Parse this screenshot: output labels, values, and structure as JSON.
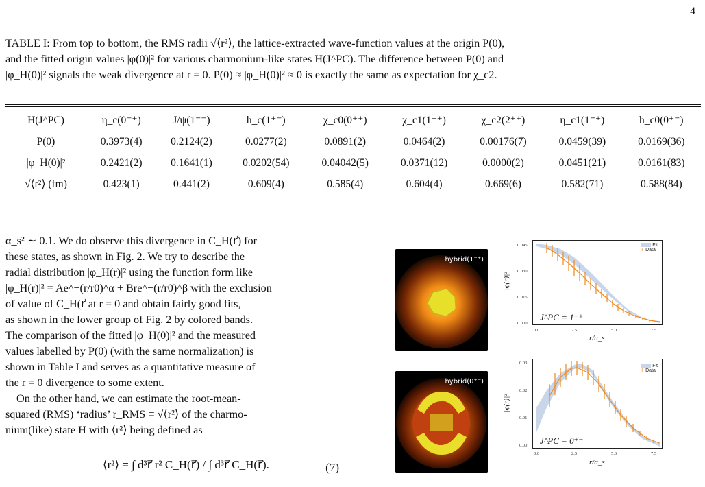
{
  "page_number": "4",
  "caption": {
    "line1": "TABLE I: From top to bottom, the RMS radii √⟨r²⟩, the lattice-extracted wave-function values at the origin P(0),",
    "line2": "and the fitted origin values |φ(0)|² for various charmonium-like states H(J^PC). The difference between P(0) and",
    "line3": "|φ_H(0)|² signals the weak divergence at r = 0. P(0) ≈ |φ_H(0)|² ≈ 0 is exactly the same as expectation for χ_c2."
  },
  "table": {
    "header": [
      "H(J^PC)",
      "η_c(0⁻⁺)",
      "J/ψ(1⁻⁻)",
      "h_c(1⁺⁻)",
      "χ_c0(0⁺⁺)",
      "χ_c1(1⁺⁺)",
      "χ_c2(2⁺⁺)",
      "η_c1(1⁻⁺)",
      "h_c0(0⁺⁻)"
    ],
    "rows": [
      [
        "P(0)",
        "0.3973(4)",
        "0.2124(2)",
        "0.0277(2)",
        "0.0891(2)",
        "0.0464(2)",
        "0.00176(7)",
        "0.0459(39)",
        "0.0169(36)"
      ],
      [
        "|φ_H(0)|²",
        "0.2421(2)",
        "0.1641(1)",
        "0.0202(54)",
        "0.04042(5)",
        "0.0371(12)",
        "0.0000(2)",
        "0.0451(21)",
        "0.0161(83)"
      ],
      [
        "√⟨r²⟩ (fm)",
        "0.423(1)",
        "0.441(2)",
        "0.609(4)",
        "0.585(4)",
        "0.604(4)",
        "0.669(6)",
        "0.582(71)",
        "0.588(84)"
      ]
    ]
  },
  "body": {
    "l1": "α_s² ∼ 0.1. We do observe this divergence in C_H(r⃗) for",
    "l2": "these states, as shown in Fig. 2. We try to describe the",
    "l3": "radial distribution |φ_H(r)|² using the function form like",
    "l4": "|φ_H(r)|² = Ae^−(r/r0)^α + Bre^−(r/r0)^β with the exclusion",
    "l5": "of value of C_H(r⃗ at r = 0 and obtain fairly good fits,",
    "l6": "as shown in the lower group of Fig. 2 by colored bands.",
    "l7": "The comparison of the fitted |φ_H(0)|² and the measured",
    "l8": "values labelled by P(0) (with the same normalization) is",
    "l9": "shown in Table I and serves as a quantitative measure of",
    "l10": "the r = 0 divergence to some extent.",
    "l11": "On the other hand, we can estimate the root-mean-",
    "l12": "squared (RMS) ‘radius’ r_RMS ≡ √⟨r²⟩ of the charmo-",
    "l13": "nium(like) state H with ⟨r²⟩ being defined as"
  },
  "equation": {
    "text": "⟨r²⟩ = ∫ d³r⃗ r² C_H(r⃗) / ∫ d³r⃗ C_H(r⃗).",
    "number": "(7)"
  },
  "figures": [
    {
      "hybrid_label": "hybrid(1⁻⁺)",
      "jpc_label": "J^PC = 1⁻⁺",
      "ylabel": "|φ(r)|²",
      "xlabel": "r/a_s",
      "legend": [
        "Fit",
        "Data"
      ],
      "yticks": [
        "0.000",
        "0.015",
        "0.030",
        "0.045"
      ],
      "xticks": [
        "0.0",
        "2.5",
        "5.0",
        "7.5"
      ]
    },
    {
      "hybrid_label": "hybrid(0⁺⁻)",
      "jpc_label": "J^PC = 0⁺⁻",
      "ylabel": "|φ(r)|²",
      "xlabel": "r/a_s",
      "legend": [
        "Fit",
        "Data"
      ],
      "yticks": [
        "0.00",
        "0.01",
        "0.02",
        "0.03"
      ],
      "xticks": [
        "0.0",
        "2.5",
        "5.0",
        "7.5"
      ]
    }
  ],
  "colors": {
    "data": "#f0891a",
    "fit": "#c9d6ea",
    "ref": "#c0141a"
  }
}
